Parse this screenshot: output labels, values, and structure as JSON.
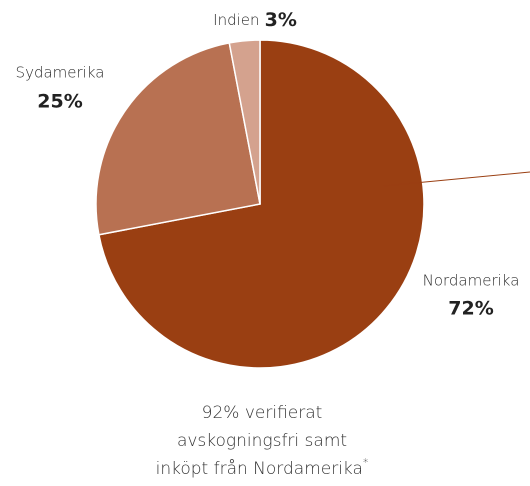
{
  "chart_data": {
    "type": "pie",
    "categories": [
      "Nordamerika",
      "Sydamerika",
      "Indien"
    ],
    "values": [
      72,
      25,
      3
    ],
    "value_labels": [
      "72%",
      "25%",
      "3%"
    ],
    "colors": [
      "#9a3f12",
      "#b87152",
      "#d4a28e"
    ],
    "caption": [
      "92% verifierat",
      "avskogningsfri samt",
      "inköpt från Nordamerika"
    ],
    "footnote_mark": "*"
  }
}
